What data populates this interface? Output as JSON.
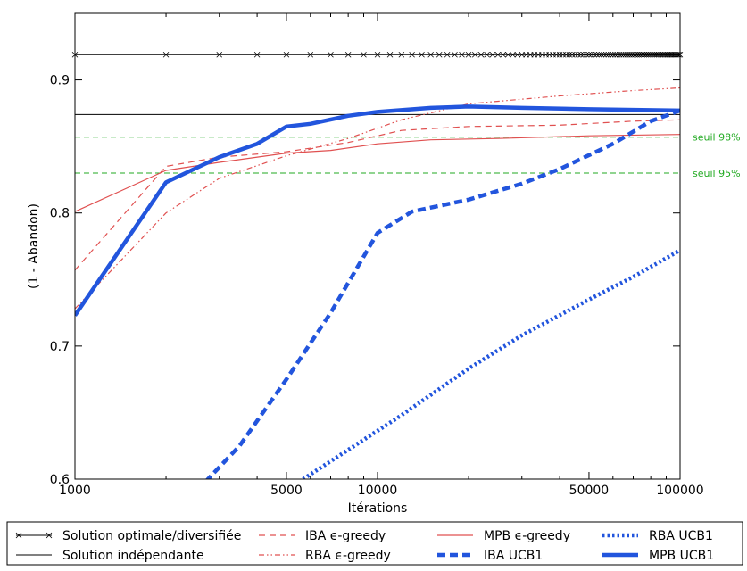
{
  "chart_data": {
    "type": "line",
    "xlabel": "Itérations",
    "ylabel": "(1 - Abandon)",
    "x_scale": "log",
    "xlim": [
      1000,
      100000
    ],
    "ylim": [
      0.6,
      0.95
    ],
    "x_ticks": [
      1000,
      5000,
      10000,
      50000,
      100000
    ],
    "x_tick_labels": [
      "1000",
      "5000",
      "10000",
      "50000",
      "100000"
    ],
    "y_ticks": [
      0.6,
      0.7,
      0.8,
      0.9
    ],
    "y_tick_labels": [
      "0.6",
      "0.7",
      "0.8",
      "0.9"
    ],
    "grid": false,
    "legend_position": "bottom",
    "reference_lines": [
      {
        "label": "Solution optimale/diversifiée",
        "y": 0.919,
        "color": "#000000",
        "style": "solid-x-markers"
      },
      {
        "label": "Solution indépendante",
        "y": 0.874,
        "color": "#000000",
        "style": "solid"
      }
    ],
    "thresholds": [
      {
        "label": "seuil 98%",
        "y": 0.857,
        "color": "#22aa22"
      },
      {
        "label": "seuil 95%",
        "y": 0.83,
        "color": "#22aa22"
      }
    ],
    "series": [
      {
        "name": "IBA ϵ-greedy",
        "color": "#e05050",
        "style": "dashed",
        "x": [
          1000,
          2000,
          3000,
          5000,
          8000,
          12000,
          20000,
          40000,
          70000,
          100000
        ],
        "y": [
          0.757,
          0.835,
          0.842,
          0.846,
          0.853,
          0.862,
          0.865,
          0.866,
          0.869,
          0.87
        ]
      },
      {
        "name": "RBA ϵ-greedy",
        "color": "#e05050",
        "style": "dashdot",
        "x": [
          1000,
          2000,
          3000,
          5000,
          8000,
          12000,
          20000,
          40000,
          70000,
          100000
        ],
        "y": [
          0.728,
          0.8,
          0.826,
          0.843,
          0.856,
          0.87,
          0.882,
          0.888,
          0.892,
          0.894
        ]
      },
      {
        "name": "MPB ϵ-greedy",
        "color": "#e05050",
        "style": "solid",
        "x": [
          1000,
          2000,
          3000,
          5000,
          7000,
          10000,
          15000,
          25000,
          50000,
          100000
        ],
        "y": [
          0.801,
          0.832,
          0.838,
          0.845,
          0.847,
          0.852,
          0.855,
          0.856,
          0.858,
          0.859
        ]
      },
      {
        "name": "IBA UCB1",
        "color": "#2255dd",
        "style": "bold-dashed",
        "x": [
          2700,
          3500,
          5000,
          7000,
          10000,
          13000,
          15000,
          20000,
          30000,
          40000,
          60000,
          80000,
          100000
        ],
        "y": [
          0.598,
          0.625,
          0.675,
          0.725,
          0.785,
          0.801,
          0.804,
          0.81,
          0.822,
          0.833,
          0.852,
          0.869,
          0.877
        ]
      },
      {
        "name": "RBA UCB1",
        "color": "#2255dd",
        "style": "bold-dotted",
        "x": [
          5500,
          8000,
          12000,
          20000,
          30000,
          50000,
          70000,
          100000
        ],
        "y": [
          0.598,
          0.622,
          0.648,
          0.683,
          0.708,
          0.735,
          0.752,
          0.772
        ]
      },
      {
        "name": "MPB UCB1",
        "color": "#2255dd",
        "style": "bold-solid",
        "x": [
          1000,
          2000,
          3000,
          4000,
          5000,
          6000,
          8000,
          10000,
          15000,
          20000,
          30000,
          50000,
          100000
        ],
        "y": [
          0.723,
          0.823,
          0.842,
          0.852,
          0.865,
          0.867,
          0.873,
          0.876,
          0.879,
          0.88,
          0.879,
          0.878,
          0.877
        ]
      }
    ]
  }
}
